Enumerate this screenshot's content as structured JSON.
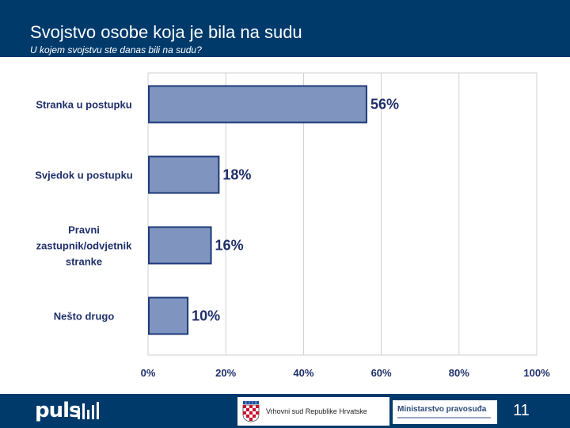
{
  "header": {
    "title": "Svojstvo osobe koja je bila na sudu",
    "subtitle": "U kojem svojstvu ste danas bili na sudu?"
  },
  "chart_data": {
    "type": "bar",
    "orientation": "horizontal",
    "categories": [
      [
        "Stranka u postupku"
      ],
      [
        "Svjedok u postupku"
      ],
      [
        "Pravni",
        "zastupnik/odvjetnik",
        "stranke"
      ],
      [
        "Nešto drugo"
      ]
    ],
    "values": [
      56,
      18,
      16,
      10
    ],
    "value_labels": [
      "56%",
      "18%",
      "16%",
      "10%"
    ],
    "xlim": [
      0,
      100
    ],
    "x_ticks": [
      "0%",
      "20%",
      "40%",
      "60%",
      "80%",
      "100%"
    ],
    "grid": true,
    "bar_color": "#7f95c0",
    "bar_edge_color": "#1f3a78"
  },
  "footer": {
    "brand": "puls",
    "court_name": "Vrhovni sud Republike Hrvatske",
    "ministry": "Ministarstvo pravosuđa",
    "page_number": "11",
    "coat_icon": "croatian-coat-of-arms-icon"
  },
  "colors": {
    "header_bg": "#003a6b",
    "label_color": "#1f2f6a",
    "grid_color": "#d0d0d0"
  }
}
